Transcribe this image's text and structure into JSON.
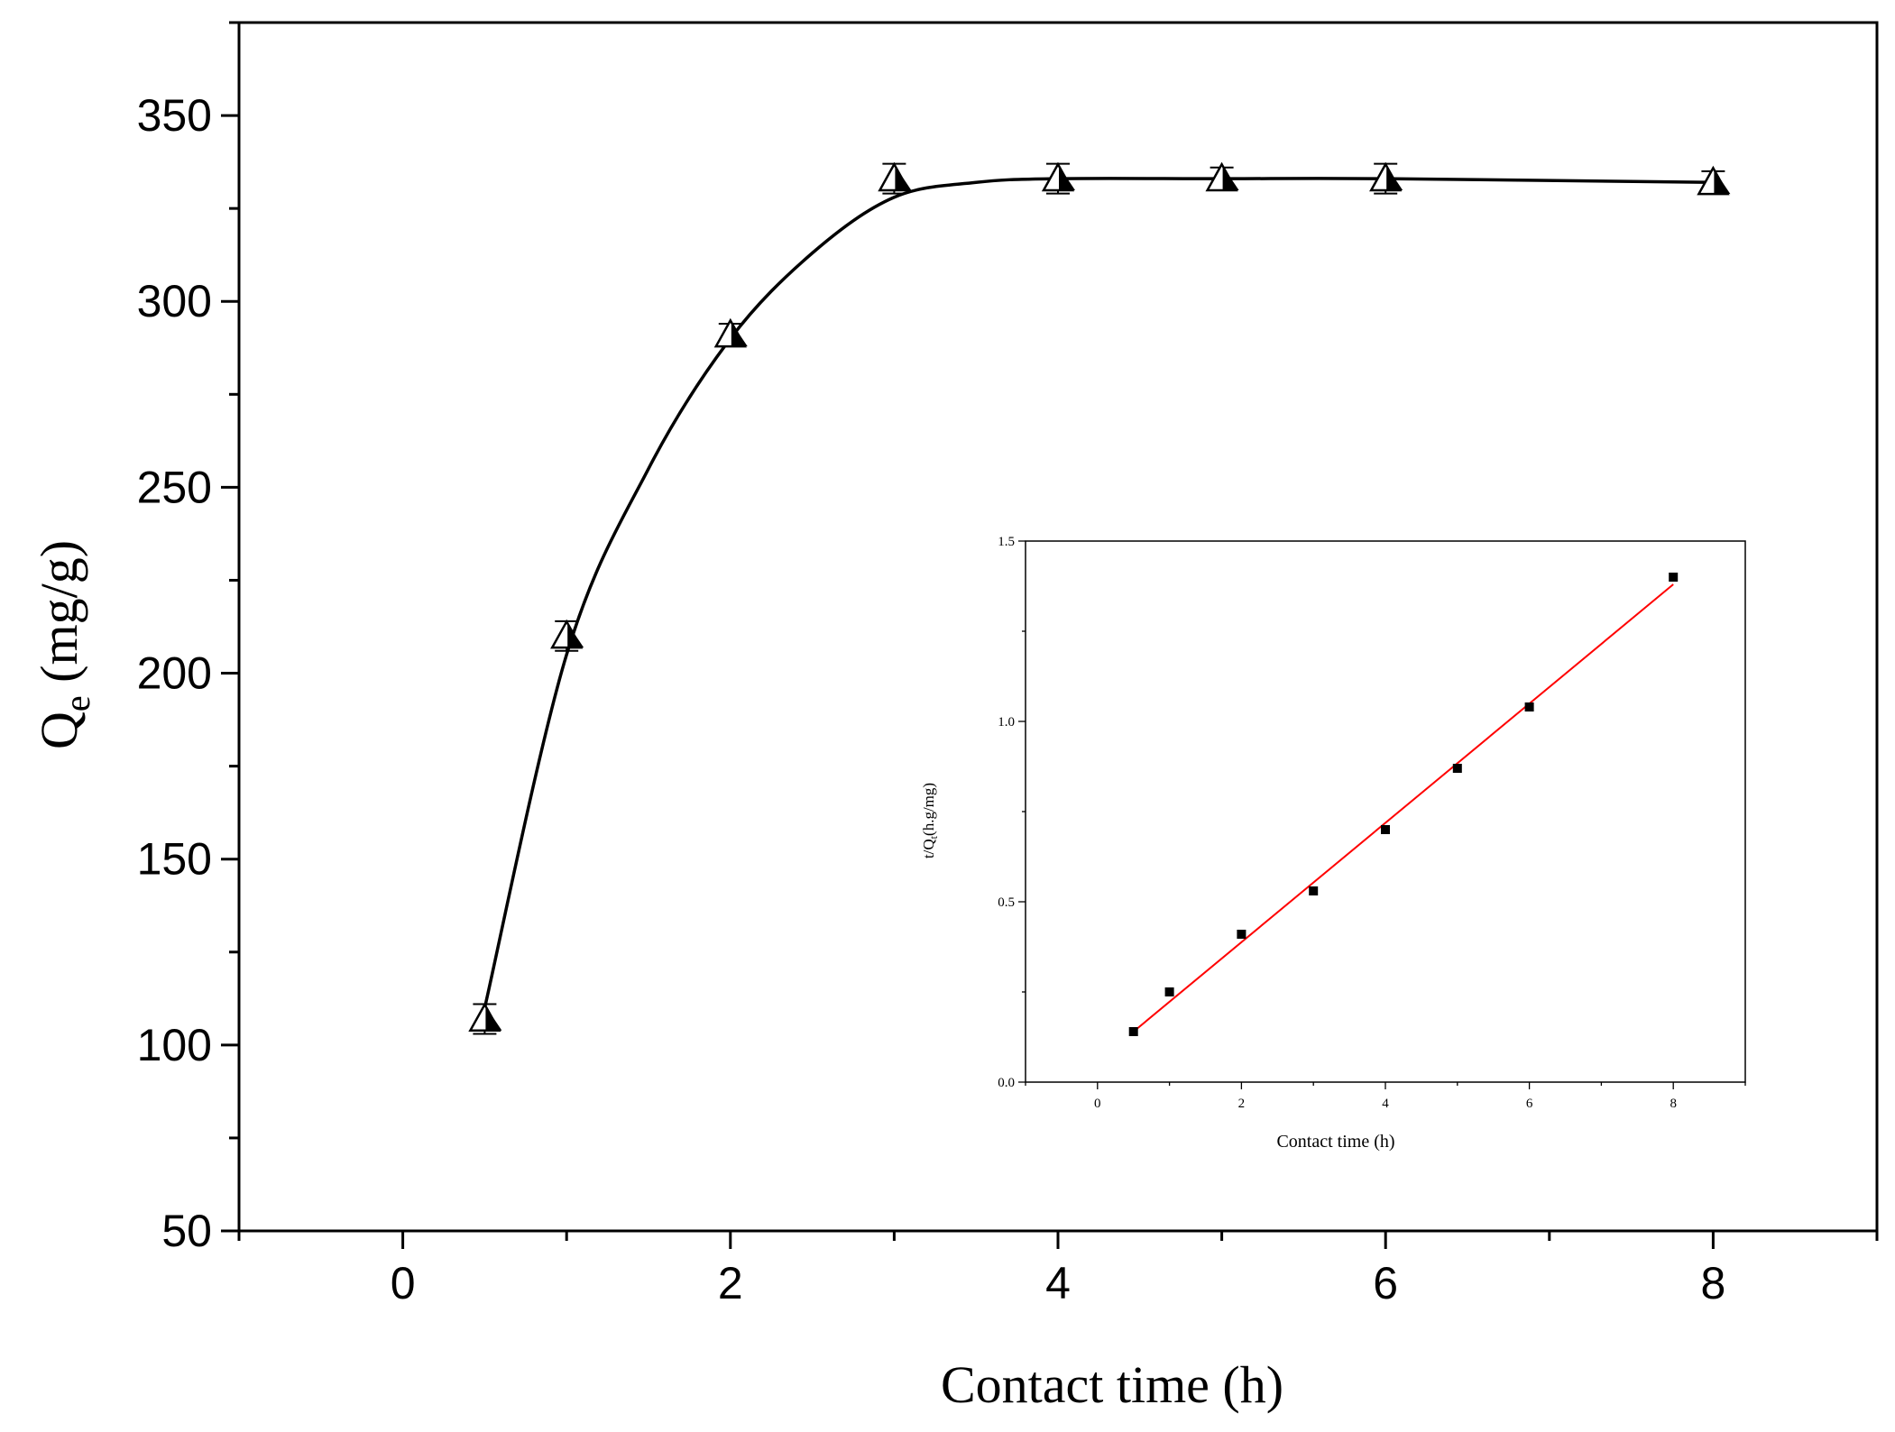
{
  "chart_data": [
    {
      "type": "line",
      "xlabel": "Contact time (h)",
      "ylabel": {
        "base": "Q",
        "sub": "e",
        "unit": " (mg/g)"
      },
      "xlim": [
        -1,
        9
      ],
      "ylim": [
        50,
        375
      ],
      "x_ticks": [
        0,
        2,
        4,
        6,
        8
      ],
      "y_ticks": [
        50,
        100,
        150,
        200,
        250,
        300,
        350
      ],
      "grid": false,
      "series": [
        {
          "marker": "triangle",
          "x": [
            0.5,
            1,
            2,
            3,
            4,
            5,
            6,
            8
          ],
          "y": [
            107,
            210,
            291,
            333,
            333,
            333,
            333,
            332
          ],
          "error": [
            4,
            4,
            3,
            4,
            4,
            3,
            4,
            3
          ]
        }
      ],
      "fit_curve": {
        "x": [
          0.5,
          1,
          1.5,
          2,
          2.5,
          3,
          3.5,
          4,
          5,
          6,
          8
        ],
        "y": [
          110,
          205,
          255,
          290,
          313,
          328,
          332,
          333,
          333,
          333,
          332
        ]
      }
    },
    {
      "type": "scatter",
      "xlabel": "Contact time (h)",
      "ylabel": {
        "base": "t/Q",
        "sub": "t",
        "unit": "(h.g/mg)"
      },
      "xlim": [
        -1,
        9
      ],
      "ylim": [
        0,
        1.5
      ],
      "x_ticks": [
        0,
        2,
        4,
        6,
        8
      ],
      "y_ticks": [
        0.0,
        0.5,
        1.0,
        1.5
      ],
      "y_tick_labels": [
        "0.0",
        "0.5",
        "1.0",
        "1.5"
      ],
      "grid": false,
      "series": [
        {
          "marker": "square",
          "x": [
            0.5,
            1,
            2,
            3,
            4,
            5,
            6,
            8
          ],
          "y": [
            0.14,
            0.25,
            0.41,
            0.53,
            0.7,
            0.87,
            1.04,
            1.4
          ]
        }
      ],
      "fit_line": {
        "x": [
          0.5,
          8
        ],
        "y": [
          0.14,
          1.38
        ],
        "color": "#ff0000"
      }
    }
  ]
}
